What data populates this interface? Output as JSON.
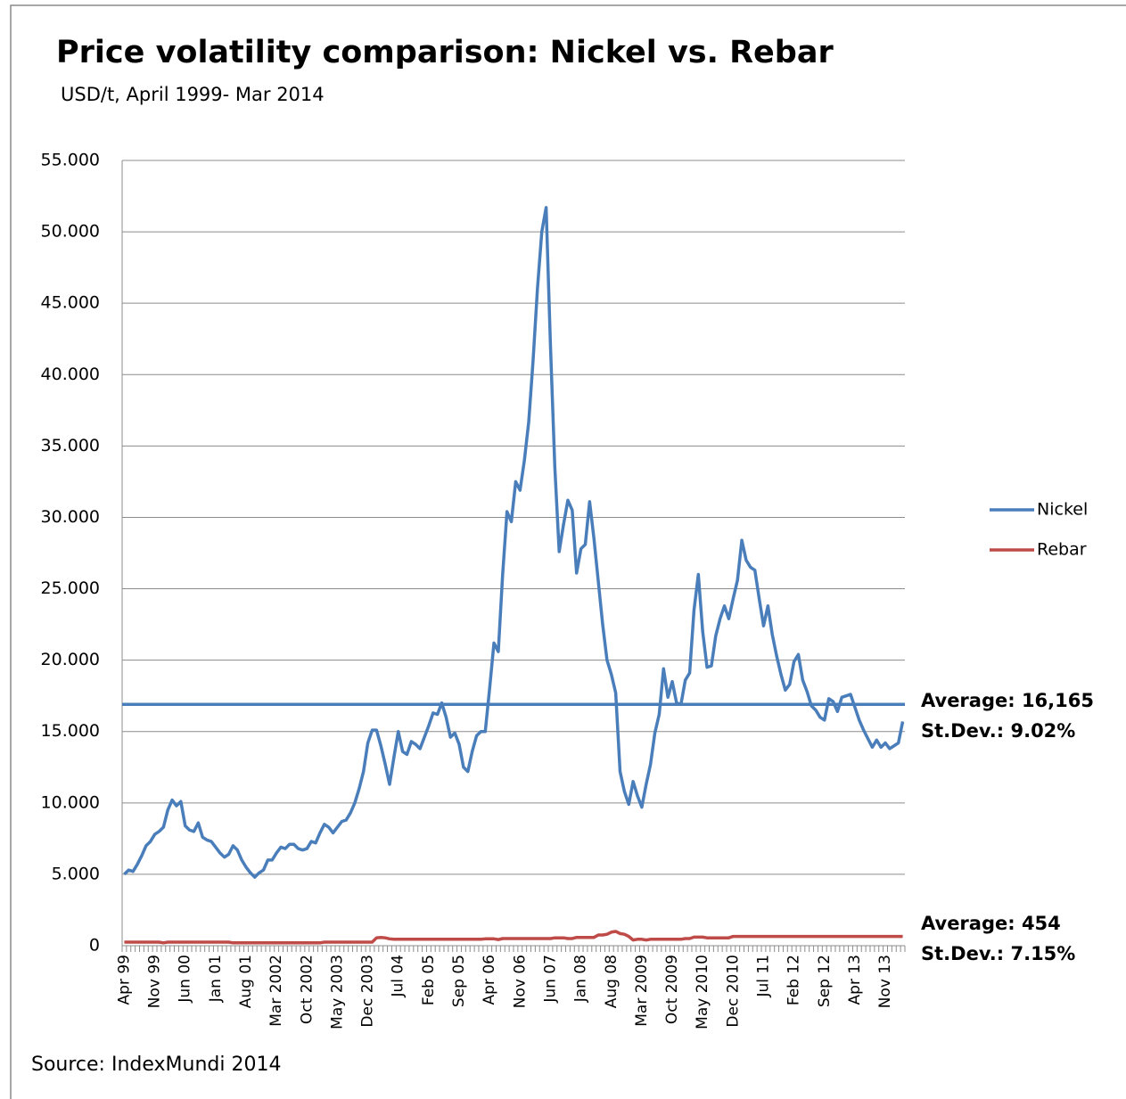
{
  "chart_data": {
    "type": "line",
    "title": "Price volatility comparison: Nickel vs. Rebar",
    "subtitle": "USD/t, April 1999- Mar 2014",
    "source": "Source: IndexMundi 2014",
    "categories": [
      "Apr 99",
      null,
      null,
      null,
      null,
      null,
      null,
      "Nov 99",
      null,
      null,
      null,
      null,
      null,
      null,
      "Jun 00",
      null,
      null,
      null,
      null,
      null,
      null,
      "Jan 01",
      null,
      null,
      null,
      null,
      null,
      null,
      "Aug 01",
      null,
      null,
      null,
      null,
      null,
      null,
      "Mar 2002",
      null,
      null,
      null,
      null,
      null,
      null,
      "Oct 2002",
      null,
      null,
      null,
      null,
      null,
      null,
      "May 2003",
      null,
      null,
      null,
      null,
      null,
      null,
      "Dec 2003",
      null,
      null,
      null,
      null,
      null,
      null,
      "Jul 04",
      null,
      null,
      null,
      null,
      null,
      null,
      "Feb 05",
      null,
      null,
      null,
      null,
      null,
      null,
      "Sep 05",
      null,
      null,
      null,
      null,
      null,
      null,
      "Apr 06",
      null,
      null,
      null,
      null,
      null,
      null,
      "Nov 06",
      null,
      null,
      null,
      null,
      null,
      null,
      "Jun 07",
      null,
      null,
      null,
      null,
      null,
      null,
      "Jan 08",
      null,
      null,
      null,
      null,
      null,
      null,
      "Aug 08",
      null,
      null,
      null,
      null,
      null,
      null,
      "Mar 2009",
      null,
      null,
      null,
      null,
      null,
      null,
      "Oct 2009",
      null,
      null,
      null,
      null,
      null,
      null,
      "May 2010",
      null,
      null,
      null,
      null,
      null,
      null,
      "Dec 2010",
      null,
      null,
      null,
      null,
      null,
      null,
      "Jul 11",
      null,
      null,
      null,
      null,
      null,
      null,
      "Feb 12",
      null,
      null,
      null,
      null,
      null,
      null,
      "Sep 12",
      null,
      null,
      null,
      null,
      null,
      null,
      "Apr 13",
      null,
      null,
      null,
      null,
      null,
      null,
      "Nov 13",
      null,
      null,
      null,
      null
    ],
    "series": [
      {
        "name": "Nickel",
        "color": "#4a7ebb",
        "values": [
          5000,
          5300,
          5200,
          5700,
          6300,
          7000,
          7300,
          7800,
          8000,
          8300,
          9500,
          10200,
          9800,
          10100,
          8400,
          8100,
          8000,
          8600,
          7600,
          7400,
          7300,
          6900,
          6500,
          6200,
          6400,
          7000,
          6700,
          6000,
          5500,
          5100,
          4800,
          5100,
          5300,
          6000,
          6000,
          6500,
          6900,
          6800,
          7100,
          7100,
          6800,
          6700,
          6800,
          7300,
          7200,
          7900,
          8500,
          8300,
          7900,
          8300,
          8700,
          8800,
          9300,
          10000,
          11000,
          12200,
          14200,
          15100,
          15100,
          14000,
          12700,
          11300,
          13200,
          15000,
          13600,
          13400,
          14300,
          14100,
          13800,
          14600,
          15400,
          16300,
          16200,
          17000,
          16000,
          14600,
          14900,
          14100,
          12500,
          12200,
          13600,
          14700,
          15000,
          15000,
          18000,
          21200,
          20600,
          26000,
          30400,
          29700,
          32500,
          31900,
          34000,
          36700,
          41000,
          46000,
          50000,
          51700,
          42000,
          33500,
          27600,
          29500,
          31200,
          30500,
          26100,
          27800,
          28100,
          31100,
          28500,
          25500,
          22500,
          20000,
          19000,
          17700,
          12200,
          10800,
          9900,
          11500,
          10500,
          9700,
          11300,
          12700,
          14900,
          16200,
          19400,
          17400,
          18500,
          17000,
          16900,
          18600,
          19100,
          23500,
          26000,
          22000,
          19500,
          19600,
          21700,
          22900,
          23800,
          22900,
          24300,
          25600,
          28400,
          27000,
          26500,
          26300,
          24300,
          22400,
          23800,
          21800,
          20300,
          19000,
          17900,
          18300,
          19900,
          20400,
          18600,
          17800,
          16800,
          16500,
          16000,
          15800,
          17300,
          17100,
          16400,
          17400,
          17500,
          17600,
          16700,
          15800,
          15100,
          14500,
          13900,
          14400,
          13900,
          14200,
          13800,
          14000,
          14200,
          15700
        ]
      },
      {
        "name": "Rebar",
        "color": "#be4b48",
        "values": [
          250,
          250,
          250,
          250,
          250,
          250,
          250,
          250,
          250,
          200,
          250,
          250,
          250,
          250,
          250,
          250,
          250,
          250,
          250,
          250,
          250,
          250,
          250,
          250,
          250,
          200,
          200,
          200,
          200,
          200,
          200,
          200,
          200,
          200,
          200,
          200,
          200,
          200,
          200,
          200,
          200,
          200,
          200,
          200,
          200,
          200,
          250,
          250,
          250,
          250,
          250,
          250,
          250,
          250,
          250,
          250,
          250,
          250,
          550,
          580,
          550,
          480,
          450,
          450,
          450,
          450,
          450,
          450,
          450,
          450,
          450,
          450,
          450,
          450,
          450,
          450,
          450,
          450,
          450,
          450,
          450,
          450,
          450,
          480,
          480,
          480,
          430,
          500,
          500,
          500,
          500,
          500,
          500,
          500,
          500,
          500,
          500,
          500,
          500,
          550,
          550,
          550,
          500,
          500,
          580,
          580,
          580,
          580,
          580,
          750,
          750,
          800,
          950,
          1000,
          850,
          800,
          650,
          400,
          450,
          450,
          400,
          450,
          450,
          450,
          450,
          450,
          450,
          450,
          450,
          500,
          500,
          600,
          600,
          600,
          550,
          550,
          550,
          550,
          550,
          550,
          650,
          650,
          650,
          650,
          650,
          650,
          650,
          650,
          650,
          650,
          650,
          650,
          650,
          650,
          650,
          650,
          650,
          650,
          650,
          650,
          650,
          650,
          650,
          650,
          650,
          650,
          650,
          650,
          650,
          650,
          650,
          650,
          650,
          650,
          650,
          650,
          650,
          650,
          650,
          650
        ]
      }
    ],
    "reference_lines": [
      {
        "value": 16900,
        "color": "#4a7ebb"
      }
    ],
    "annotations": [
      "Average: 16,165",
      "St.Dev.: 9.02%",
      "Average: 454",
      "St.Dev.: 7.15%"
    ],
    "ylim": [
      0,
      55000
    ],
    "yticks": [
      0,
      {
        "value": 5000,
        "label": "5.000"
      },
      {
        "value": 10000,
        "label": "10.000"
      },
      {
        "value": 15000,
        "label": "15.000"
      },
      {
        "value": 20000,
        "label": "20.000"
      },
      {
        "value": 25000,
        "label": "25.000"
      },
      {
        "value": 30000,
        "label": "30.000"
      },
      {
        "value": 35000,
        "label": "35.000"
      },
      {
        "value": 40000,
        "label": "40.000"
      },
      {
        "value": 45000,
        "label": "45.000"
      },
      {
        "value": 50000,
        "label": "50.000"
      },
      {
        "value": 55000,
        "label": "55.000"
      }
    ],
    "grid": true,
    "legend": "right"
  }
}
